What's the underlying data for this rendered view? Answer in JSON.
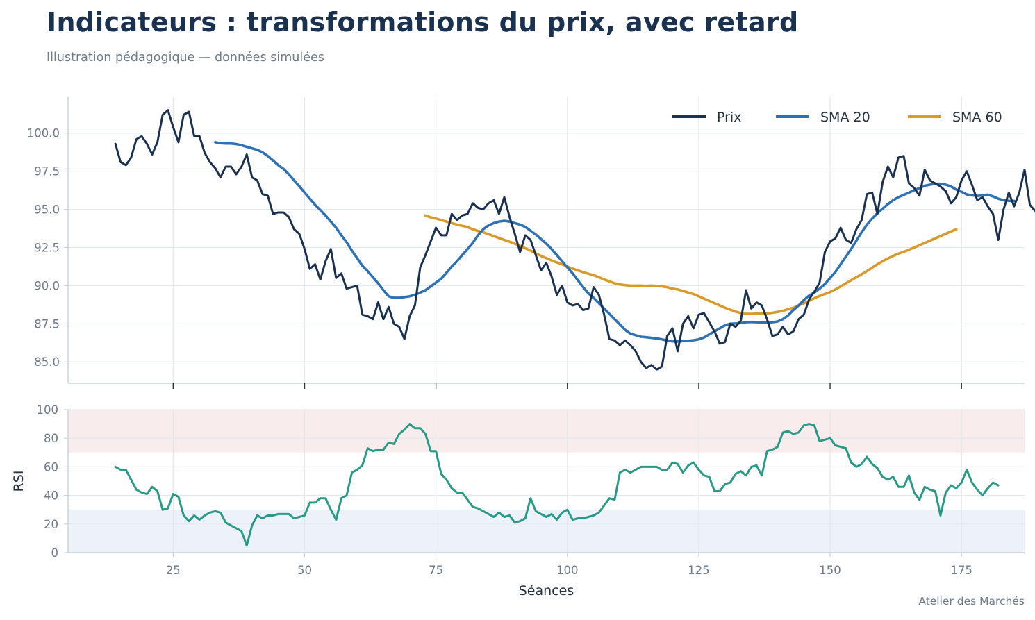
{
  "header": {
    "title": "Indicateurs : transformations du prix, avec retard",
    "subtitle": "Illustration pédagogique — données simulées",
    "credit": "Atelier des Marchés"
  },
  "colors": {
    "prix": "#1b3150",
    "sma20": "#2e72b5",
    "sma60": "#d99a2b",
    "rsi": "#2a9a88",
    "overbought_band": "#f9ecec",
    "oversold_band": "#ecf1fa",
    "grid": "#e3e8ee",
    "axis": "#c9d3de"
  },
  "chart_data": [
    {
      "type": "line",
      "panel": "price",
      "xlim": [
        5,
        187
      ],
      "ylim": [
        83.6,
        102.4
      ],
      "y_ticks": [
        85.0,
        87.5,
        90.0,
        92.5,
        95.0,
        97.5,
        100.0
      ],
      "y_tick_labels": [
        "85.0",
        "87.5",
        "90.0",
        "92.5",
        "95.0",
        "97.5",
        "100.0"
      ],
      "grid": true,
      "legend_position": "top-right",
      "series": [
        {
          "name": "Prix",
          "key": "prix",
          "x_start": 14,
          "values": [
            99.3,
            98.1,
            97.9,
            98.4,
            99.6,
            99.8,
            99.3,
            98.6,
            99.4,
            101.2,
            101.5,
            100.4,
            99.4,
            101.2,
            101.4,
            99.8,
            99.8,
            98.7,
            98.1,
            97.7,
            97.1,
            97.8,
            97.8,
            97.3,
            97.8,
            98.6,
            97.1,
            96.9,
            96.0,
            95.9,
            94.7,
            94.8,
            94.8,
            94.5,
            93.7,
            93.4,
            92.4,
            91.1,
            91.4,
            90.4,
            91.6,
            92.4,
            90.5,
            90.8,
            89.8,
            89.9,
            90.0,
            88.1,
            88.0,
            87.8,
            88.9,
            87.8,
            88.6,
            87.5,
            87.3,
            86.5,
            88.0,
            88.7,
            91.2,
            92.0,
            92.9,
            93.8,
            93.3,
            93.3,
            94.7,
            94.3,
            94.6,
            94.7,
            95.4,
            95.1,
            95.0,
            95.4,
            95.6,
            94.7,
            95.8,
            94.5,
            93.4,
            92.2,
            93.3,
            93.0,
            92.0,
            91.0,
            91.5,
            90.6,
            89.4,
            90.0,
            88.9,
            88.7,
            88.8,
            88.4,
            88.5,
            89.9,
            89.4,
            88.1,
            86.5,
            86.4,
            86.1,
            86.4,
            86.1,
            85.7,
            85.0,
            84.6,
            84.8,
            84.5,
            84.7,
            86.7,
            87.2,
            85.7,
            87.5,
            88.0,
            87.2,
            88.1,
            88.2,
            87.6,
            87.0,
            86.2,
            86.3,
            87.5,
            87.3,
            87.7,
            89.7,
            88.5,
            88.9,
            88.7,
            87.8,
            86.7,
            86.8,
            87.3,
            86.8,
            87.0,
            87.8,
            88.1,
            89.1,
            89.6,
            90.2,
            92.2,
            92.9,
            93.1,
            93.8,
            93.0,
            92.8,
            93.7,
            94.3,
            96.0,
            96.1,
            94.7,
            96.8,
            97.8,
            97.1,
            98.4,
            98.5,
            96.7,
            96.4,
            95.9,
            97.6,
            96.9,
            96.7,
            96.5,
            96.2,
            95.4,
            95.8,
            96.9,
            97.5,
            96.6,
            95.6,
            95.8,
            95.2,
            94.7,
            93.0,
            95.0,
            96.1,
            95.2,
            96.1,
            97.6,
            95.3,
            94.9,
            94.6,
            95.2,
            95.2,
            95.0
          ]
        },
        {
          "name": "SMA 20",
          "key": "sma20",
          "x_start": 33,
          "values": [
            99.4,
            99.34,
            99.32,
            99.32,
            99.28,
            99.2,
            99.1,
            99.0,
            98.9,
            98.74,
            98.5,
            98.2,
            97.9,
            97.65,
            97.3,
            96.9,
            96.52,
            96.1,
            95.7,
            95.3,
            94.95,
            94.6,
            94.2,
            93.8,
            93.3,
            92.85,
            92.3,
            91.8,
            91.3,
            90.95,
            90.55,
            90.15,
            89.7,
            89.3,
            89.2,
            89.2,
            89.25,
            89.3,
            89.4,
            89.55,
            89.7,
            89.95,
            90.2,
            90.45,
            90.85,
            91.25,
            91.6,
            92.0,
            92.4,
            92.8,
            93.3,
            93.7,
            93.95,
            94.1,
            94.2,
            94.25,
            94.2,
            94.1,
            94.0,
            93.85,
            93.6,
            93.35,
            93.05,
            92.75,
            92.4,
            92.0,
            91.6,
            91.2,
            90.8,
            90.35,
            89.9,
            89.5,
            89.2,
            88.85,
            88.5,
            88.15,
            87.8,
            87.45,
            87.1,
            86.85,
            86.75,
            86.65,
            86.62,
            86.58,
            86.54,
            86.48,
            86.4,
            86.35,
            86.34,
            86.36,
            86.38,
            86.42,
            86.48,
            86.6,
            86.8,
            87.0,
            87.2,
            87.4,
            87.5,
            87.52,
            87.55,
            87.6,
            87.62,
            87.6,
            87.58,
            87.58,
            87.6,
            87.65,
            87.8,
            88.05,
            88.4,
            88.7,
            89.05,
            89.35,
            89.55,
            89.8,
            90.1,
            90.5,
            90.9,
            91.4,
            91.9,
            92.4,
            92.95,
            93.5,
            94.0,
            94.4,
            94.75,
            95.05,
            95.35,
            95.6,
            95.8,
            95.95,
            96.1,
            96.25,
            96.4,
            96.55,
            96.62,
            96.68,
            96.68,
            96.62,
            96.5,
            96.3,
            96.15,
            95.98,
            95.92,
            95.88,
            95.92,
            95.96,
            95.85,
            95.7,
            95.6,
            95.56,
            95.55
          ]
        },
        {
          "name": "SMA 60",
          "key": "sma60",
          "x_start": 73,
          "values": [
            94.6,
            94.48,
            94.4,
            94.3,
            94.2,
            94.1,
            94.0,
            93.92,
            93.84,
            93.7,
            93.58,
            93.5,
            93.38,
            93.25,
            93.12,
            93.0,
            92.88,
            92.75,
            92.6,
            92.45,
            92.3,
            92.12,
            91.95,
            91.8,
            91.65,
            91.52,
            91.4,
            91.25,
            91.12,
            91.0,
            90.88,
            90.78,
            90.68,
            90.55,
            90.4,
            90.28,
            90.15,
            90.08,
            90.03,
            90.0,
            90.0,
            90.0,
            89.98,
            90.0,
            89.98,
            89.95,
            89.9,
            89.8,
            89.75,
            89.65,
            89.55,
            89.45,
            89.3,
            89.15,
            89.0,
            88.85,
            88.7,
            88.55,
            88.42,
            88.3,
            88.2,
            88.15,
            88.15,
            88.16,
            88.17,
            88.18,
            88.22,
            88.28,
            88.35,
            88.45,
            88.55,
            88.7,
            88.85,
            89.0,
            89.18,
            89.32,
            89.45,
            89.58,
            89.75,
            89.95,
            90.15,
            90.35,
            90.55,
            90.75,
            90.95,
            91.18,
            91.4,
            91.6,
            91.78,
            91.95,
            92.1,
            92.22,
            92.35,
            92.5,
            92.65,
            92.8,
            92.95,
            93.1,
            93.25,
            93.4,
            93.55,
            93.7
          ]
        }
      ]
    },
    {
      "type": "line",
      "panel": "rsi",
      "ylabel": "RSI",
      "xlabel": "Séances",
      "xlim": [
        5,
        187
      ],
      "ylim": [
        0,
        100
      ],
      "x_ticks": [
        25,
        50,
        75,
        100,
        125,
        150,
        175
      ],
      "x_tick_labels": [
        "25",
        "50",
        "75",
        "100",
        "125",
        "150",
        "175"
      ],
      "y_ticks": [
        0,
        20,
        40,
        60,
        80,
        100
      ],
      "y_tick_labels": [
        "0",
        "20",
        "40",
        "60",
        "80",
        "100"
      ],
      "bands": [
        {
          "key": "overbought",
          "from": 70,
          "to": 100
        },
        {
          "key": "oversold",
          "from": 0,
          "to": 30
        }
      ],
      "grid": true,
      "series": [
        {
          "name": "RSI",
          "key": "rsi",
          "x_start": 14,
          "values": [
            60,
            58,
            58,
            51,
            44,
            42,
            41,
            46,
            43,
            30,
            31,
            41,
            39,
            26,
            22,
            26,
            23,
            26,
            28,
            29,
            28,
            21,
            19,
            17,
            15,
            5,
            19,
            26,
            24,
            26,
            26,
            27,
            27,
            27,
            24,
            25,
            26,
            35,
            35,
            38,
            38,
            30,
            23,
            38,
            40,
            56,
            58,
            61,
            73,
            71,
            72,
            72,
            77,
            76,
            83,
            86,
            90,
            87,
            87,
            83,
            71,
            71,
            55,
            51,
            45,
            42,
            42,
            37,
            32,
            31,
            29,
            27,
            25,
            28,
            25,
            26,
            21,
            22,
            24,
            38,
            29,
            27,
            25,
            27,
            23,
            28,
            30,
            23,
            24,
            24,
            25,
            26,
            28,
            33,
            38,
            37,
            56,
            58,
            56,
            58,
            60,
            60,
            60,
            60,
            58,
            58,
            63,
            62,
            56,
            61,
            63,
            58,
            54,
            53,
            43,
            43,
            48,
            49,
            55,
            57,
            54,
            60,
            61,
            54,
            71,
            72,
            74,
            84,
            85,
            83,
            84,
            89,
            90,
            89,
            78,
            79,
            80,
            75,
            74,
            73,
            63,
            60,
            62,
            67,
            62,
            59,
            53,
            51,
            53,
            46,
            46,
            54,
            42,
            37,
            46,
            44,
            43,
            26,
            42,
            47,
            45,
            49,
            58,
            49,
            44,
            40,
            45,
            49,
            47
          ]
        }
      ]
    }
  ]
}
